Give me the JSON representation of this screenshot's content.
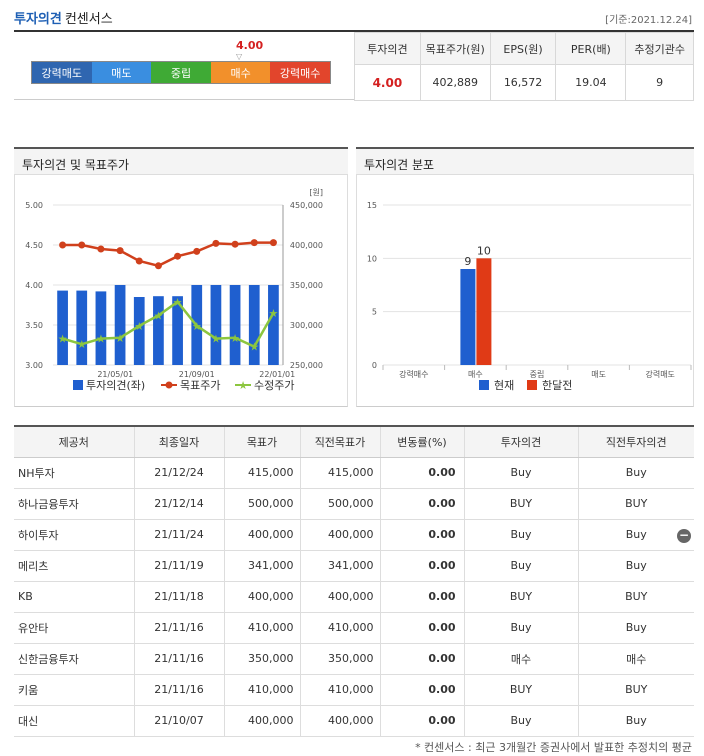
{
  "header": {
    "title_bold": "투자의견",
    "title_rest": "컨센서스",
    "base_date": "[기준:2021.12.24]"
  },
  "scale": {
    "labels": [
      "강력매도",
      "매도",
      "중립",
      "매수",
      "강력매수"
    ],
    "current_value": "4.00",
    "colors": [
      "#2f66b0",
      "#3a8ee0",
      "#3faa35",
      "#f2902b",
      "#e2452c"
    ]
  },
  "summary": {
    "headers": [
      "투자의견",
      "목표주가(원)",
      "EPS(원)",
      "PER(배)",
      "추정기관수"
    ],
    "values": [
      "4.00",
      "402,889",
      "16,572",
      "19.04",
      "9"
    ]
  },
  "panel_left": {
    "title": "투자의견 및 목표주가"
  },
  "panel_right": {
    "title": "투자의견 분포"
  },
  "chart_data": [
    {
      "type": "bar",
      "unit_label": "[원]",
      "x_ticks": [
        "21/05/01",
        "21/09/01",
        "22/01/01"
      ],
      "y_left": {
        "ticks": [
          "5.00",
          "4.50",
          "4.00",
          "3.50",
          "3.00"
        ],
        "range": [
          3.0,
          5.0
        ]
      },
      "y_right": {
        "ticks": [
          "450,000",
          "400,000",
          "350,000",
          "300,000",
          "250,000"
        ],
        "range": [
          250000,
          450000
        ]
      },
      "legend": [
        "투자의견(좌)",
        "목표주가",
        "수정주가"
      ],
      "series": [
        {
          "name": "투자의견(좌)",
          "color": "#1f5fcf",
          "values": [
            3.93,
            3.93,
            3.92,
            4.0,
            3.85,
            3.86,
            3.86,
            4.0,
            4.0,
            4.0,
            4.0,
            4.0
          ]
        },
        {
          "name": "목표주가",
          "color": "#d0401c",
          "values": [
            400000,
            400000,
            395000,
            393000,
            380000,
            374000,
            386000,
            392000,
            402000,
            401000,
            403000,
            403000
          ]
        },
        {
          "name": "수정주가",
          "color": "#8cc63f",
          "values": [
            283000,
            276000,
            283000,
            284000,
            299000,
            312000,
            329000,
            299000,
            283000,
            284000,
            273000,
            315000
          ]
        }
      ]
    },
    {
      "type": "bar",
      "categories": [
        "강력매수",
        "매수",
        "중립",
        "매도",
        "강력매도"
      ],
      "y_ticks": [
        "15",
        "10",
        "5",
        "0"
      ],
      "ylim": [
        0,
        15
      ],
      "legend": [
        "현재",
        "한달전"
      ],
      "series": [
        {
          "name": "현재",
          "color": "#1f5fcf",
          "values": [
            0,
            9,
            0,
            0,
            0
          ],
          "labels": [
            "",
            "9",
            "",
            "",
            ""
          ]
        },
        {
          "name": "한달전",
          "color": "#e03a16",
          "values": [
            0,
            10,
            0,
            0,
            0
          ],
          "labels": [
            "",
            "10",
            "",
            "",
            ""
          ]
        }
      ]
    }
  ],
  "table": {
    "headers": [
      "제공처",
      "최종일자",
      "목표가",
      "직전목표가",
      "변동률(%)",
      "투자의견",
      "직전투자의견"
    ],
    "rows": [
      {
        "name": "NH투자",
        "date": "21/12/24",
        "target": "415,000",
        "prev_target": "415,000",
        "change": "0.00",
        "opinion": "Buy",
        "prev_opinion": "Buy"
      },
      {
        "name": "하나금융투자",
        "date": "21/12/14",
        "target": "500,000",
        "prev_target": "500,000",
        "change": "0.00",
        "opinion": "BUY",
        "prev_opinion": "BUY"
      },
      {
        "name": "하이투자",
        "date": "21/11/24",
        "target": "400,000",
        "prev_target": "400,000",
        "change": "0.00",
        "opinion": "Buy",
        "prev_opinion": "Buy"
      },
      {
        "name": "메리츠",
        "date": "21/11/19",
        "target": "341,000",
        "prev_target": "341,000",
        "change": "0.00",
        "opinion": "Buy",
        "prev_opinion": "Buy"
      },
      {
        "name": "KB",
        "date": "21/11/18",
        "target": "400,000",
        "prev_target": "400,000",
        "change": "0.00",
        "opinion": "BUY",
        "prev_opinion": "BUY"
      },
      {
        "name": "유안타",
        "date": "21/11/16",
        "target": "410,000",
        "prev_target": "410,000",
        "change": "0.00",
        "opinion": "Buy",
        "prev_opinion": "Buy"
      },
      {
        "name": "신한금융투자",
        "date": "21/11/16",
        "target": "350,000",
        "prev_target": "350,000",
        "change": "0.00",
        "opinion": "매수",
        "prev_opinion": "매수"
      },
      {
        "name": "키움",
        "date": "21/11/16",
        "target": "410,000",
        "prev_target": "410,000",
        "change": "0.00",
        "opinion": "BUY",
        "prev_opinion": "BUY"
      },
      {
        "name": "대신",
        "date": "21/10/07",
        "target": "400,000",
        "prev_target": "400,000",
        "change": "0.00",
        "opinion": "Buy",
        "prev_opinion": "Buy"
      }
    ],
    "collapse_icon": "minus-circle-icon"
  },
  "footnote": "* 컨센서스 : 최근 3개월간 증권사에서 발표한 추정치의 평균"
}
